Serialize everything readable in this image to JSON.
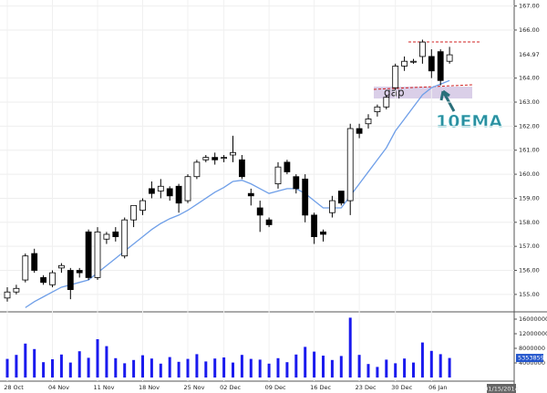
{
  "chart_data": [
    {
      "type": "candlestick",
      "categories": [
        "28 Oct",
        null,
        null,
        null,
        null,
        "04 Nov",
        null,
        null,
        null,
        null,
        "11 Nov",
        null,
        null,
        null,
        null,
        "18 Nov",
        null,
        null,
        null,
        null,
        "25 Nov",
        null,
        null,
        null,
        "02 Dec",
        null,
        null,
        null,
        null,
        "09 Dec",
        null,
        null,
        null,
        null,
        "16 Dec",
        null,
        null,
        null,
        null,
        "23 Dec",
        null,
        null,
        null,
        "30 Dec",
        null,
        null,
        null,
        "06 Jan",
        null,
        null
      ],
      "open": [
        154.85,
        155.1,
        155.6,
        156.7,
        155.7,
        155.4,
        156.1,
        156.0,
        156.0,
        157.6,
        155.7,
        157.3,
        157.6,
        156.6,
        158.1,
        158.5,
        159.4,
        159.3,
        159.4,
        159.5,
        158.9,
        159.9,
        160.6,
        160.7,
        160.7,
        160.8,
        160.6,
        159.2,
        158.6,
        158.1,
        159.6,
        160.5,
        159.9,
        159.8,
        158.3,
        157.6,
        158.4,
        159.3,
        158.9,
        161.9,
        162.1,
        162.6,
        162.8,
        163.6,
        164.5,
        164.7,
        164.9,
        164.9,
        165.1,
        164.7
      ],
      "high": [
        155.3,
        155.4,
        156.7,
        156.9,
        155.8,
        156.0,
        156.3,
        156.1,
        156.1,
        157.7,
        157.8,
        157.6,
        157.8,
        158.2,
        158.7,
        159.0,
        159.7,
        159.8,
        159.5,
        159.6,
        160.0,
        160.6,
        160.8,
        160.9,
        160.8,
        161.6,
        160.8,
        159.4,
        158.9,
        158.2,
        160.5,
        160.6,
        160.0,
        160.0,
        158.4,
        157.7,
        159.1,
        159.3,
        162.1,
        162.1,
        162.5,
        162.9,
        163.3,
        164.6,
        164.9,
        164.8,
        165.6,
        165.2,
        165.2,
        165.3
      ],
      "low": [
        154.7,
        155.0,
        155.5,
        155.9,
        155.4,
        155.3,
        155.9,
        154.8,
        155.7,
        155.6,
        155.6,
        157.1,
        157.2,
        156.5,
        157.8,
        158.3,
        159.0,
        159.0,
        158.9,
        158.4,
        158.8,
        159.8,
        160.5,
        160.4,
        160.5,
        160.5,
        159.8,
        158.7,
        157.6,
        157.8,
        159.4,
        160.0,
        159.2,
        158.0,
        157.1,
        157.2,
        158.2,
        158.7,
        158.3,
        161.5,
        161.9,
        162.4,
        162.7,
        163.5,
        164.3,
        164.6,
        164.6,
        164.0,
        163.7,
        164.6
      ],
      "close": [
        155.1,
        155.25,
        156.6,
        156.0,
        155.5,
        155.9,
        156.2,
        155.2,
        155.9,
        155.7,
        157.6,
        157.5,
        157.4,
        158.1,
        158.7,
        158.9,
        159.2,
        159.5,
        159.1,
        158.8,
        159.9,
        160.5,
        160.7,
        160.6,
        160.7,
        160.9,
        159.9,
        159.1,
        158.3,
        157.9,
        160.3,
        160.1,
        159.4,
        158.3,
        157.4,
        157.5,
        158.9,
        158.8,
        161.9,
        161.7,
        162.3,
        162.8,
        163.2,
        164.5,
        164.7,
        164.7,
        165.5,
        164.3,
        163.9,
        164.97
      ],
      "series": [
        {
          "name": "10EMA",
          "color": "#6f9fe8",
          "values": [
            null,
            null,
            154.45,
            154.7,
            154.9,
            155.1,
            155.3,
            155.4,
            155.5,
            155.6,
            155.9,
            156.2,
            156.5,
            156.8,
            157.1,
            157.4,
            157.7,
            157.95,
            158.15,
            158.3,
            158.5,
            158.75,
            159.0,
            159.25,
            159.45,
            159.7,
            159.75,
            159.6,
            159.4,
            159.2,
            159.3,
            159.4,
            159.4,
            159.2,
            158.9,
            158.6,
            158.6,
            158.6,
            159.1,
            159.6,
            160.1,
            160.6,
            161.1,
            161.8,
            162.3,
            162.8,
            163.3,
            163.6,
            163.75,
            163.9
          ]
        }
      ],
      "ylim": [
        154.35,
        167.25
      ],
      "yticks": [
        {
          "value": 155,
          "label": "155.00"
        },
        {
          "value": 156,
          "label": "156.00"
        },
        {
          "value": 157,
          "label": "157.00"
        },
        {
          "value": 158,
          "label": "158.00"
        },
        {
          "value": 159,
          "label": "159.00"
        },
        {
          "value": 160,
          "label": "160.00"
        },
        {
          "value": 161,
          "label": "161.00"
        },
        {
          "value": 162,
          "label": "162.00"
        },
        {
          "value": 163,
          "label": "163.00"
        },
        {
          "value": 164,
          "label": "164.00"
        },
        {
          "value": 166,
          "label": "166.00"
        },
        {
          "value": 167,
          "label": "167.00"
        }
      ],
      "annotations": [
        "gap"
      ],
      "date_stamp": "01/15/2014"
    },
    {
      "type": "bar",
      "color": "#1a1aee",
      "values": [
        5100000,
        6200000,
        9300000,
        7800000,
        4200000,
        5000000,
        6300000,
        4100000,
        7200000,
        5400000,
        10500000,
        8600000,
        5300000,
        3900000,
        4800000,
        6100000,
        5200000,
        3800000,
        5600000,
        4300000,
        5100000,
        6400000,
        4400000,
        5200000,
        5500000,
        4100000,
        6200000,
        5100000,
        4900000,
        3800000,
        5300000,
        4200000,
        6300000,
        8400000,
        7100000,
        6000000,
        4800000,
        5900000,
        16400000,
        6200000,
        3700000,
        2900000,
        4900000,
        3900000,
        5200000,
        4100000,
        9600000,
        7300000,
        6400000,
        5353859
      ],
      "ylim": [
        0,
        17250000
      ],
      "yticks": [
        4000000,
        8000000,
        12000000,
        16000000
      ]
    }
  ]
}
